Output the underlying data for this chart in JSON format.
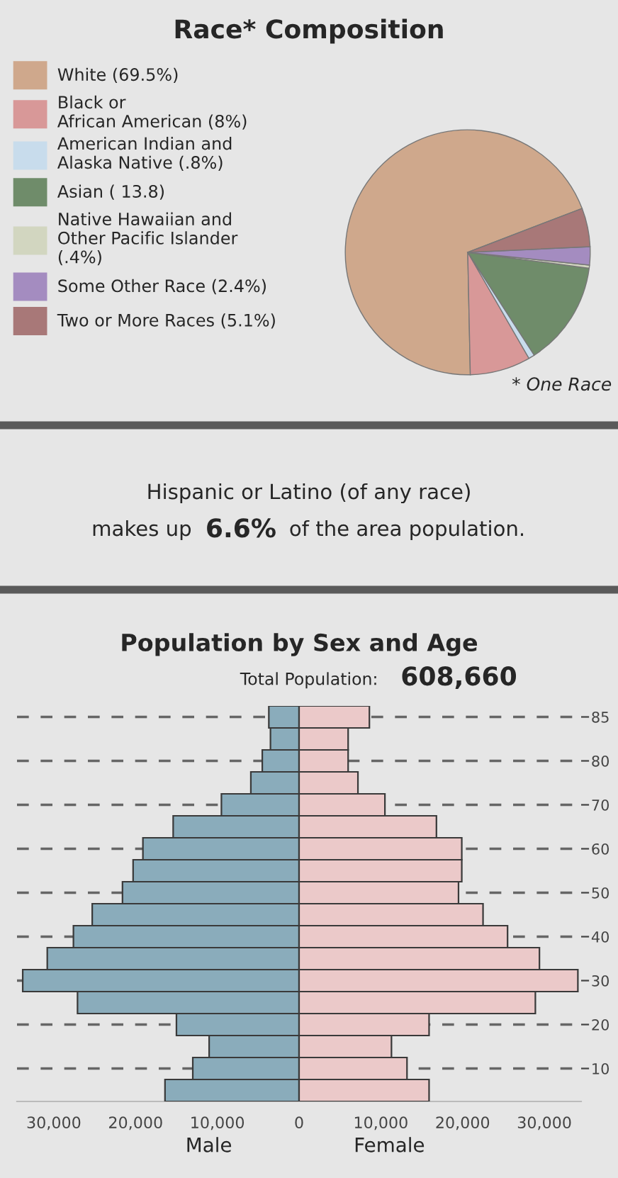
{
  "chart_data": [
    {
      "type": "pie",
      "title": "Race* Composition",
      "categories": [
        "White (69.5%)",
        "Black or\nAfrican American (8%)",
        "American Indian and\nAlaska Native (.8%)",
        "Asian ( 13.8)",
        "Native Hawaiian and\nOther Pacific Islander\n(.4%)",
        "Some Other Race (2.4%)",
        "Two or More Races (5.1%)"
      ],
      "values": [
        69.5,
        8,
        0.8,
        13.8,
        0.4,
        2.4,
        5.1
      ],
      "colors": [
        "#cfa88c",
        "#d89898",
        "#c8dcec",
        "#6f8c6a",
        "#d2d6c0",
        "#a48cc0",
        "#a87878"
      ],
      "legend": "left",
      "annotations": [
        "* One Race"
      ]
    },
    {
      "type": "other",
      "annotations": [
        "Hispanic or Latino (of any race)",
        "makes up",
        "6.6%",
        "of the area population."
      ]
    },
    {
      "type": "bar",
      "orientation": "horizontal",
      "title": "Population by Sex and Age",
      "subtitle": "Total Population:",
      "annotations": [
        "608,660"
      ],
      "categories": [
        "85",
        null,
        "80",
        null,
        "70",
        null,
        "60",
        null,
        "50",
        null,
        "40",
        null,
        "30",
        null,
        "20",
        null,
        "10",
        null
      ],
      "series": [
        {
          "name": "Male",
          "color": "#8aacbb",
          "values": [
            -3700,
            -3500,
            -4500,
            -5900,
            -9500,
            -15400,
            -19100,
            -20300,
            -21600,
            -25300,
            -27600,
            -30800,
            -33800,
            -27100,
            -15000,
            -11000,
            -13000,
            -16400
          ]
        },
        {
          "name": "Female",
          "color": "#ebc9c9",
          "values": [
            8600,
            6000,
            6000,
            7200,
            10500,
            16800,
            19900,
            19900,
            19500,
            22500,
            25500,
            29400,
            34100,
            28900,
            15900,
            11300,
            13200,
            15900
          ]
        }
      ],
      "xlim": [
        -34500,
        34500
      ],
      "xticks": [
        {
          "value": -30000,
          "label": "30,000"
        },
        {
          "value": -20000,
          "label": "20,000"
        },
        {
          "value": -10000,
          "label": "10,000"
        },
        0,
        {
          "value": 10000,
          "label": "10,000"
        },
        {
          "value": 20000,
          "label": "20,000"
        },
        {
          "value": 30000,
          "label": "30,000"
        }
      ],
      "stacked": true,
      "grid": "y",
      "legend": false
    }
  ]
}
